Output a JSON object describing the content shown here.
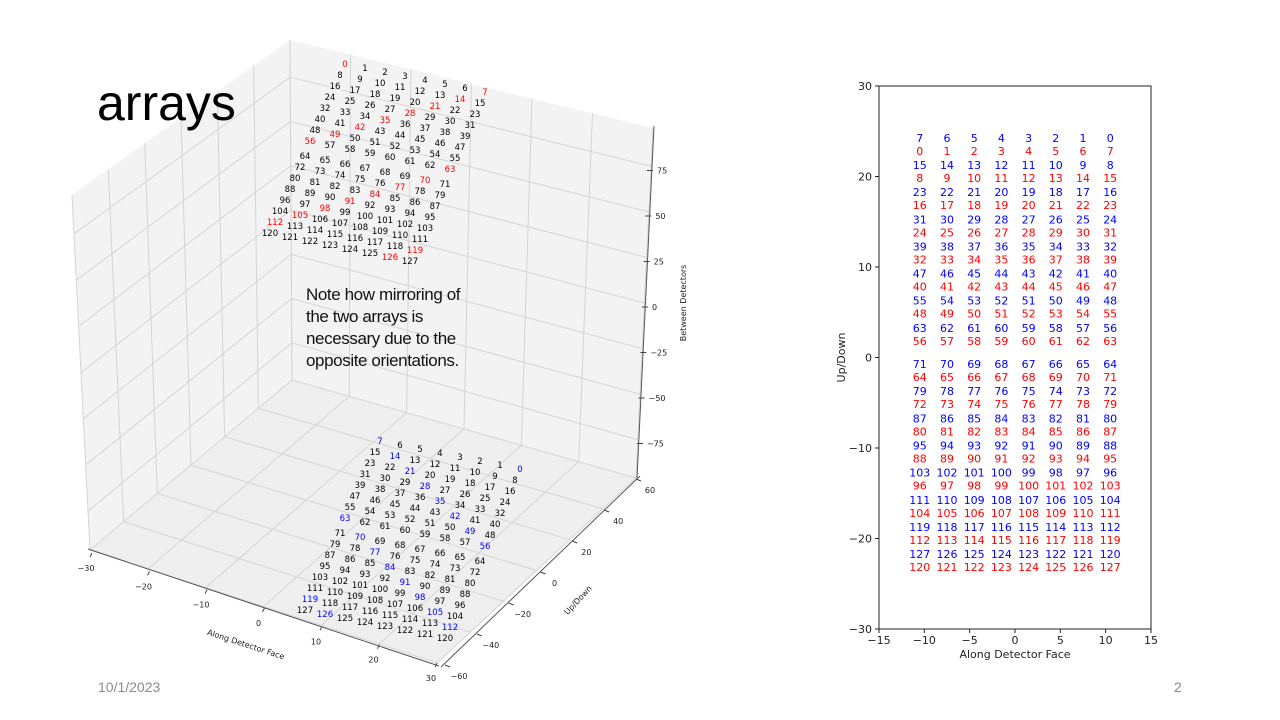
{
  "slide": {
    "title": "arrays",
    "date": "10/1/2023",
    "page_number": "2",
    "note_lines": [
      "Note how mirroring of",
      "the two arrays is",
      "necessary due to the",
      "opposite orientations."
    ]
  },
  "chart_data": [
    {
      "type": "scatter3d-text",
      "xlabel": "Along Detector Face",
      "ylabel": "Up/Down",
      "zlabel": "Between Detectors",
      "xlim": [
        -30,
        30
      ],
      "ylim": [
        -60,
        60
      ],
      "zlim": [
        -96,
        96
      ],
      "xticks": [
        -30,
        -20,
        -10,
        0,
        10,
        20,
        30
      ],
      "yticks": [
        -60,
        -40,
        -20,
        0,
        20,
        40,
        60
      ],
      "zticks": [
        -75,
        -50,
        -25,
        0,
        25,
        50,
        75
      ],
      "grid": true,
      "label_rule": "label = 8*row + col",
      "column_x": [
        -10.5,
        -7.5,
        -4.5,
        -1.5,
        1.5,
        4.5,
        7.5,
        10.5
      ],
      "row_y": [
        23.5,
        20.5,
        17.5,
        14.5,
        11.5,
        8.5,
        5.5,
        2.5,
        -1.5,
        -4.5,
        -7.5,
        -10.5,
        -13.5,
        -16.5,
        -19.5,
        -22.5
      ],
      "base_color": "#000000",
      "highlighted_labels": [
        0,
        7,
        14,
        21,
        28,
        35,
        42,
        49,
        56,
        63,
        70,
        77,
        84,
        91,
        98,
        105,
        112,
        119,
        126
      ],
      "arrays": [
        {
          "name": "top",
          "z": 90,
          "mirrored": false,
          "highlight_color": "#ff0000"
        },
        {
          "name": "bottom",
          "z": -90,
          "mirrored": true,
          "highlight_color": "#0000ff"
        }
      ]
    },
    {
      "type": "scatter-text",
      "xlabel": "Along Detector Face",
      "ylabel": "Up/Down",
      "xlim": [
        -15,
        15
      ],
      "ylim": [
        -30,
        30
      ],
      "xticks": [
        -15,
        -10,
        -5,
        0,
        5,
        10,
        15
      ],
      "yticks": [
        -30,
        -20,
        -10,
        0,
        10,
        20,
        30
      ],
      "grid": false,
      "column_x": [
        -10.5,
        -7.5,
        -4.5,
        -1.5,
        1.5,
        4.5,
        7.5,
        10.5
      ],
      "row_y": [
        23.5,
        20.5,
        17.5,
        14.5,
        11.5,
        8.5,
        5.5,
        2.5,
        -1.5,
        -4.5,
        -7.5,
        -10.5,
        -13.5,
        -16.5,
        -19.5,
        -22.5
      ],
      "series": [
        {
          "name": "blue",
          "color": "#0000ff",
          "labels": [
            [
              7,
              6,
              5,
              4,
              3,
              2,
              1,
              0
            ],
            [
              15,
              14,
              13,
              12,
              11,
              10,
              9,
              8
            ],
            [
              23,
              22,
              21,
              20,
              19,
              18,
              17,
              16
            ],
            [
              31,
              30,
              29,
              28,
              27,
              26,
              25,
              24
            ],
            [
              39,
              38,
              37,
              36,
              35,
              34,
              33,
              32
            ],
            [
              47,
              46,
              45,
              44,
              43,
              42,
              41,
              40
            ],
            [
              55,
              54,
              53,
              52,
              51,
              50,
              49,
              48
            ],
            [
              63,
              62,
              61,
              60,
              59,
              58,
              57,
              56
            ],
            [
              71,
              70,
              69,
              68,
              67,
              66,
              65,
              64
            ],
            [
              79,
              78,
              77,
              76,
              75,
              74,
              73,
              72
            ],
            [
              87,
              86,
              85,
              84,
              83,
              82,
              81,
              80
            ],
            [
              95,
              94,
              93,
              92,
              91,
              90,
              89,
              88
            ],
            [
              103,
              102,
              101,
              100,
              99,
              98,
              97,
              96
            ],
            [
              111,
              110,
              109,
              108,
              107,
              106,
              105,
              104
            ],
            [
              119,
              118,
              117,
              116,
              115,
              114,
              113,
              112
            ],
            [
              127,
              126,
              125,
              124,
              123,
              122,
              121,
              120
            ]
          ]
        },
        {
          "name": "red",
          "color": "#ff0000",
          "labels": [
            [
              0,
              1,
              2,
              3,
              4,
              5,
              6,
              7
            ],
            [
              8,
              9,
              10,
              11,
              12,
              13,
              14,
              15
            ],
            [
              16,
              17,
              18,
              19,
              20,
              21,
              22,
              23
            ],
            [
              24,
              25,
              26,
              27,
              28,
              29,
              30,
              31
            ],
            [
              32,
              33,
              34,
              35,
              36,
              37,
              38,
              39
            ],
            [
              40,
              41,
              42,
              43,
              44,
              45,
              46,
              47
            ],
            [
              48,
              49,
              50,
              51,
              52,
              53,
              54,
              55
            ],
            [
              56,
              57,
              58,
              59,
              60,
              61,
              62,
              63
            ],
            [
              64,
              65,
              66,
              67,
              68,
              69,
              70,
              71
            ],
            [
              72,
              73,
              74,
              75,
              76,
              77,
              78,
              79
            ],
            [
              80,
              81,
              82,
              83,
              84,
              85,
              86,
              87
            ],
            [
              88,
              89,
              90,
              91,
              92,
              93,
              94,
              95
            ],
            [
              96,
              97,
              98,
              99,
              100,
              101,
              102,
              103
            ],
            [
              104,
              105,
              106,
              107,
              108,
              109,
              110,
              111
            ],
            [
              112,
              113,
              114,
              115,
              116,
              117,
              118,
              119
            ],
            [
              120,
              121,
              122,
              123,
              124,
              125,
              126,
              127
            ]
          ]
        }
      ]
    }
  ]
}
